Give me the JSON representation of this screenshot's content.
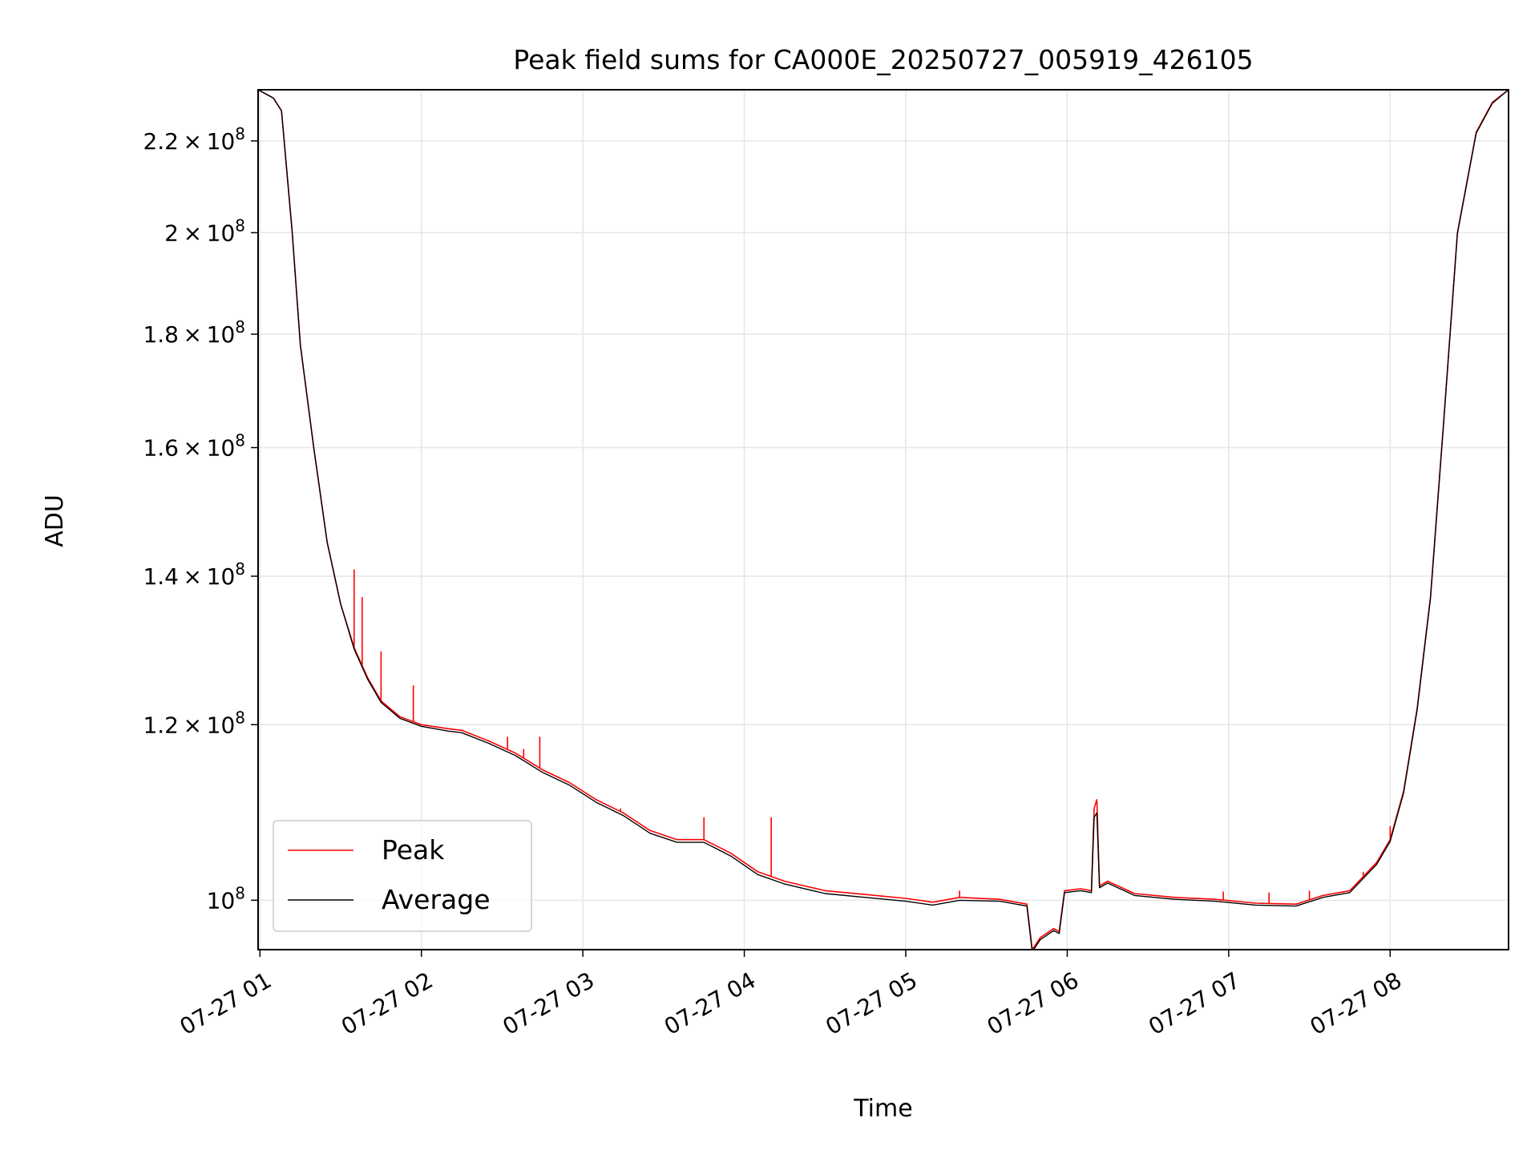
{
  "chart_data": {
    "type": "line",
    "title": "Peak field sums for CA000E_20250727_005919_426105",
    "xlabel": "Time",
    "ylabel": "ADU",
    "x_ticks": [
      "07-27 01",
      "07-27 02",
      "07-27 03",
      "07-27 04",
      "07-27 05",
      "07-27 06",
      "07-27 07",
      "07-27 08"
    ],
    "x_range": [
      "2025-07-27 00:59:19",
      "2025-07-27 08:44:00"
    ],
    "y_scale": "log",
    "y_range": [
      95000000,
      232000000
    ],
    "y_ticks": [
      {
        "value": 100000000,
        "base": "10",
        "exp": "8"
      },
      {
        "value": 120000000,
        "mantissa": "1.2",
        "base": "10",
        "exp": "8"
      },
      {
        "value": 140000000,
        "mantissa": "1.4",
        "base": "10",
        "exp": "8"
      },
      {
        "value": 160000000,
        "mantissa": "1.6",
        "base": "10",
        "exp": "8"
      },
      {
        "value": 180000000,
        "mantissa": "1.8",
        "base": "10",
        "exp": "8"
      },
      {
        "value": 200000000,
        "mantissa": "2",
        "base": "10",
        "exp": "8"
      },
      {
        "value": 220000000,
        "mantissa": "2.2",
        "base": "10",
        "exp": "8"
      }
    ],
    "grid": true,
    "legend_position": "lower-left",
    "series": [
      {
        "name": "Peak",
        "color": "#ff0000",
        "points": [
          [
            "2025-07-27 00:59:19",
            232000000
          ],
          [
            "2025-07-27 01:05:00",
            230000000
          ],
          [
            "2025-07-27 01:08:00",
            227000000
          ],
          [
            "2025-07-27 01:12:00",
            200000000
          ],
          [
            "2025-07-27 01:15:00",
            178000000
          ],
          [
            "2025-07-27 01:20:00",
            160000000
          ],
          [
            "2025-07-27 01:25:00",
            145000000
          ],
          [
            "2025-07-27 01:30:00",
            136000000
          ],
          [
            "2025-07-27 01:35:00",
            130000000
          ],
          [
            "2025-07-27 01:40:00",
            126000000
          ],
          [
            "2025-07-27 01:45:00",
            123000000
          ],
          [
            "2025-07-27 01:52:00",
            121000000
          ],
          [
            "2025-07-27 02:00:00",
            120000000
          ],
          [
            "2025-07-27 02:10:00",
            119500000
          ],
          [
            "2025-07-27 02:15:00",
            119300000
          ],
          [
            "2025-07-27 02:25:00",
            118000000
          ],
          [
            "2025-07-27 02:35:00",
            116500000
          ],
          [
            "2025-07-27 02:45:00",
            114500000
          ],
          [
            "2025-07-27 02:55:00",
            113000000
          ],
          [
            "2025-07-27 03:05:00",
            111000000
          ],
          [
            "2025-07-27 03:15:00",
            109500000
          ],
          [
            "2025-07-27 03:25:00",
            107500000
          ],
          [
            "2025-07-27 03:35:00",
            106500000
          ],
          [
            "2025-07-27 03:45:00",
            106500000
          ],
          [
            "2025-07-27 03:55:00",
            105000000
          ],
          [
            "2025-07-27 04:05:00",
            103000000
          ],
          [
            "2025-07-27 04:15:00",
            102000000
          ],
          [
            "2025-07-27 04:30:00",
            101000000
          ],
          [
            "2025-07-27 04:45:00",
            100600000
          ],
          [
            "2025-07-27 05:00:00",
            100200000
          ],
          [
            "2025-07-27 05:10:00",
            99800000
          ],
          [
            "2025-07-27 05:20:00",
            100300000
          ],
          [
            "2025-07-27 05:35:00",
            100100000
          ],
          [
            "2025-07-27 05:45:00",
            99600000
          ],
          [
            "2025-07-27 05:47:00",
            95000000
          ],
          [
            "2025-07-27 05:50:00",
            96200000
          ],
          [
            "2025-07-27 05:55:00",
            97100000
          ],
          [
            "2025-07-27 05:57:00",
            96800000
          ],
          [
            "2025-07-27 05:59:00",
            101000000
          ],
          [
            "2025-07-27 06:05:00",
            101200000
          ],
          [
            "2025-07-27 06:09:00",
            101000000
          ],
          [
            "2025-07-27 06:10:00",
            110000000
          ],
          [
            "2025-07-27 06:11:00",
            111000000
          ],
          [
            "2025-07-27 06:12:00",
            101500000
          ],
          [
            "2025-07-27 06:15:00",
            102000000
          ],
          [
            "2025-07-27 06:25:00",
            100700000
          ],
          [
            "2025-07-27 06:40:00",
            100300000
          ],
          [
            "2025-07-27 06:55:00",
            100100000
          ],
          [
            "2025-07-27 07:10:00",
            99700000
          ],
          [
            "2025-07-27 07:25:00",
            99600000
          ],
          [
            "2025-07-27 07:35:00",
            100500000
          ],
          [
            "2025-07-27 07:45:00",
            101000000
          ],
          [
            "2025-07-27 07:55:00",
            104000000
          ],
          [
            "2025-07-27 08:00:00",
            106500000
          ],
          [
            "2025-07-27 08:05:00",
            112000000
          ],
          [
            "2025-07-27 08:10:00",
            122000000
          ],
          [
            "2025-07-27 08:15:00",
            137000000
          ],
          [
            "2025-07-27 08:20:00",
            165000000
          ],
          [
            "2025-07-27 08:25:00",
            200000000
          ],
          [
            "2025-07-27 08:32:00",
            222000000
          ],
          [
            "2025-07-27 08:38:00",
            229000000
          ],
          [
            "2025-07-27 08:44:00",
            232000000
          ]
        ],
        "spikes": [
          [
            "2025-07-27 01:35:00",
            141000000
          ],
          [
            "2025-07-27 01:38:00",
            137000000
          ],
          [
            "2025-07-27 01:45:00",
            129500000
          ],
          [
            "2025-07-27 01:57:00",
            125000000
          ],
          [
            "2025-07-27 02:32:00",
            118500000
          ],
          [
            "2025-07-27 02:38:00",
            117000000
          ],
          [
            "2025-07-27 02:44:00",
            118500000
          ],
          [
            "2025-07-27 03:14:00",
            110000000
          ],
          [
            "2025-07-27 03:45:00",
            109000000
          ],
          [
            "2025-07-27 04:10:00",
            109000000
          ],
          [
            "2025-07-27 05:20:00",
            101000000
          ],
          [
            "2025-07-27 06:58:00",
            100900000
          ],
          [
            "2025-07-27 07:15:00",
            100800000
          ],
          [
            "2025-07-27 07:30:00",
            101000000
          ],
          [
            "2025-07-27 07:50:00",
            103000000
          ],
          [
            "2025-07-27 08:00:00",
            108000000
          ]
        ]
      },
      {
        "name": "Average",
        "color": "#000000",
        "points": [
          [
            "2025-07-27 00:59:19",
            232000000
          ],
          [
            "2025-07-27 01:05:00",
            230000000
          ],
          [
            "2025-07-27 01:08:00",
            227000000
          ],
          [
            "2025-07-27 01:12:00",
            200000000
          ],
          [
            "2025-07-27 01:15:00",
            178000000
          ],
          [
            "2025-07-27 01:20:00",
            160000000
          ],
          [
            "2025-07-27 01:25:00",
            145000000
          ],
          [
            "2025-07-27 01:30:00",
            136000000
          ],
          [
            "2025-07-27 01:35:00",
            129800000
          ],
          [
            "2025-07-27 01:40:00",
            125800000
          ],
          [
            "2025-07-27 01:45:00",
            122800000
          ],
          [
            "2025-07-27 01:52:00",
            120800000
          ],
          [
            "2025-07-27 02:00:00",
            119800000
          ],
          [
            "2025-07-27 02:10:00",
            119200000
          ],
          [
            "2025-07-27 02:15:00",
            119000000
          ],
          [
            "2025-07-27 02:25:00",
            117700000
          ],
          [
            "2025-07-27 02:35:00",
            116200000
          ],
          [
            "2025-07-27 02:45:00",
            114200000
          ],
          [
            "2025-07-27 02:55:00",
            112700000
          ],
          [
            "2025-07-27 03:05:00",
            110700000
          ],
          [
            "2025-07-27 03:15:00",
            109200000
          ],
          [
            "2025-07-27 03:25:00",
            107200000
          ],
          [
            "2025-07-27 03:35:00",
            106200000
          ],
          [
            "2025-07-27 03:45:00",
            106200000
          ],
          [
            "2025-07-27 03:55:00",
            104700000
          ],
          [
            "2025-07-27 04:05:00",
            102700000
          ],
          [
            "2025-07-27 04:15:00",
            101700000
          ],
          [
            "2025-07-27 04:30:00",
            100700000
          ],
          [
            "2025-07-27 04:45:00",
            100300000
          ],
          [
            "2025-07-27 05:00:00",
            99900000
          ],
          [
            "2025-07-27 05:10:00",
            99500000
          ],
          [
            "2025-07-27 05:20:00",
            100000000
          ],
          [
            "2025-07-27 05:35:00",
            99900000
          ],
          [
            "2025-07-27 05:45:00",
            99400000
          ],
          [
            "2025-07-27 05:47:00",
            94800000
          ],
          [
            "2025-07-27 05:50:00",
            96000000
          ],
          [
            "2025-07-27 05:55:00",
            96900000
          ],
          [
            "2025-07-27 05:57:00",
            96600000
          ],
          [
            "2025-07-27 05:59:00",
            100800000
          ],
          [
            "2025-07-27 06:05:00",
            101000000
          ],
          [
            "2025-07-27 06:09:00",
            100800000
          ],
          [
            "2025-07-27 06:10:00",
            109000000
          ],
          [
            "2025-07-27 06:11:00",
            109500000
          ],
          [
            "2025-07-27 06:12:00",
            101300000
          ],
          [
            "2025-07-27 06:15:00",
            101800000
          ],
          [
            "2025-07-27 06:25:00",
            100500000
          ],
          [
            "2025-07-27 06:40:00",
            100100000
          ],
          [
            "2025-07-27 06:55:00",
            99900000
          ],
          [
            "2025-07-27 07:10:00",
            99500000
          ],
          [
            "2025-07-27 07:25:00",
            99400000
          ],
          [
            "2025-07-27 07:35:00",
            100300000
          ],
          [
            "2025-07-27 07:45:00",
            100800000
          ],
          [
            "2025-07-27 07:55:00",
            103800000
          ],
          [
            "2025-07-27 08:00:00",
            106300000
          ],
          [
            "2025-07-27 08:05:00",
            111800000
          ],
          [
            "2025-07-27 08:10:00",
            121800000
          ],
          [
            "2025-07-27 08:15:00",
            136800000
          ],
          [
            "2025-07-27 08:20:00",
            164800000
          ],
          [
            "2025-07-27 08:25:00",
            199800000
          ],
          [
            "2025-07-27 08:32:00",
            221800000
          ],
          [
            "2025-07-27 08:38:00",
            228800000
          ],
          [
            "2025-07-27 08:44:00",
            232000000
          ]
        ]
      }
    ]
  }
}
